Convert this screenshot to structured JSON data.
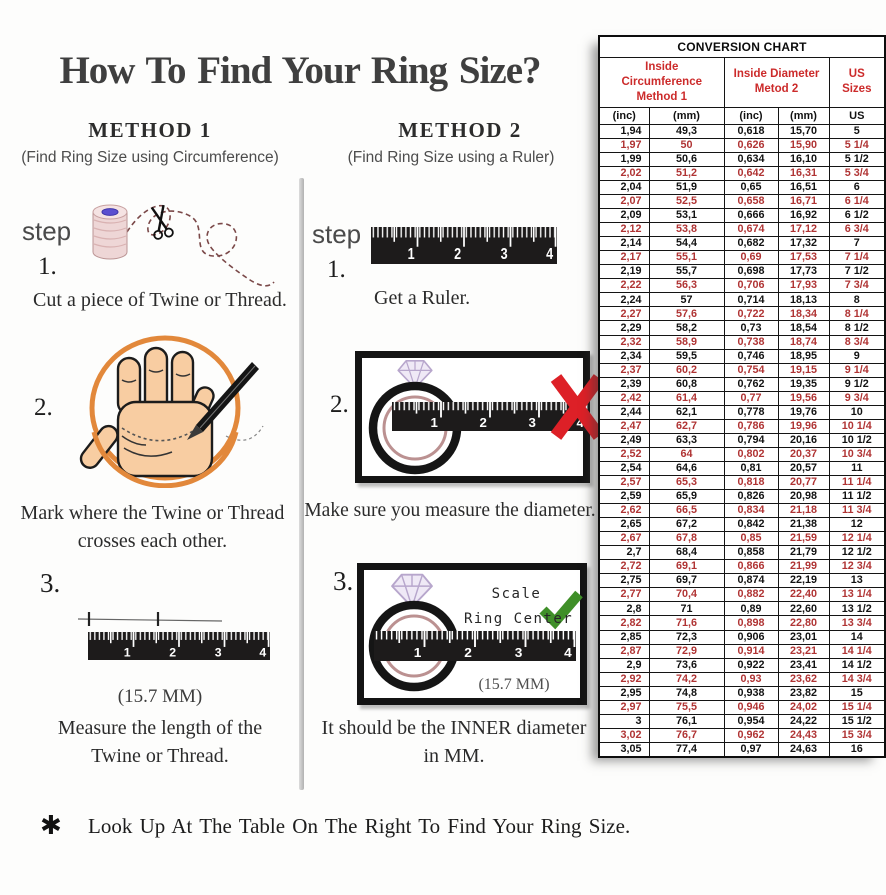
{
  "title": "How To Find Your Ring Size?",
  "footer_marker": "✱",
  "footer": "Look Up At The Table On The Right To Find Your Ring Size.",
  "ruler_numbers": [
    "1",
    "2",
    "3",
    "4"
  ],
  "methods": {
    "method1": {
      "heading": "METHOD 1",
      "subheading": "(Find Ring Size using Circumference)",
      "step_label": "step",
      "step1_num": "1.",
      "step1_caption": "Cut a piece of Twine or Thread.",
      "step2_num": "2.",
      "step2_caption_line1": "Mark where the Twine or Thread",
      "step2_caption_line2": "crosses each other.",
      "step3_num": "3.",
      "step3_measurement": "(15.7 MM)",
      "step3_caption_line1": "Measure the length of the",
      "step3_caption_line2": "Twine or Thread."
    },
    "method2": {
      "heading": "METHOD 2",
      "subheading": "(Find Ring Size using a Ruler)",
      "step_label": "step",
      "step1_num": "1.",
      "step1_caption": "Get a Ruler.",
      "step2_num": "2.",
      "step2_caption": "Make sure you measure the diameter.",
      "step3_num": "3.",
      "step3_annotation_line1": "Scale",
      "step3_annotation_line2": "Ring Center",
      "step3_measurement": "(15.7 MM)",
      "step3_caption_line1": "It should be the INNER diameter",
      "step3_caption_line2": "in MM."
    }
  },
  "conversion_chart": {
    "title": "CONVERSION CHART",
    "group_headers": [
      "Inside Circumference Method 1",
      "Inside Diameter Metod 2",
      "US Sizes"
    ],
    "unit_headers": [
      "(inc)",
      "(mm)",
      "(inc)",
      "(mm)",
      "US"
    ],
    "rows": [
      [
        "1,94",
        "49,3",
        "0,618",
        "15,70",
        "5"
      ],
      [
        "1,97",
        "50",
        "0,626",
        "15,90",
        "5 1/4"
      ],
      [
        "1,99",
        "50,6",
        "0,634",
        "16,10",
        "5 1/2"
      ],
      [
        "2,02",
        "51,2",
        "0,642",
        "16,31",
        "5 3/4"
      ],
      [
        "2,04",
        "51,9",
        "0,65",
        "16,51",
        "6"
      ],
      [
        "2,07",
        "52,5",
        "0,658",
        "16,71",
        "6 1/4"
      ],
      [
        "2,09",
        "53,1",
        "0,666",
        "16,92",
        "6 1/2"
      ],
      [
        "2,12",
        "53,8",
        "0,674",
        "17,12",
        "6 3/4"
      ],
      [
        "2,14",
        "54,4",
        "0,682",
        "17,32",
        "7"
      ],
      [
        "2,17",
        "55,1",
        "0,69",
        "17,53",
        "7 1/4"
      ],
      [
        "2,19",
        "55,7",
        "0,698",
        "17,73",
        "7 1/2"
      ],
      [
        "2,22",
        "56,3",
        "0,706",
        "17,93",
        "7 3/4"
      ],
      [
        "2,24",
        "57",
        "0,714",
        "18,13",
        "8"
      ],
      [
        "2,27",
        "57,6",
        "0,722",
        "18,34",
        "8 1/4"
      ],
      [
        "2,29",
        "58,2",
        "0,73",
        "18,54",
        "8 1/2"
      ],
      [
        "2,32",
        "58,9",
        "0,738",
        "18,74",
        "8 3/4"
      ],
      [
        "2,34",
        "59,5",
        "0,746",
        "18,95",
        "9"
      ],
      [
        "2,37",
        "60,2",
        "0,754",
        "19,15",
        "9 1/4"
      ],
      [
        "2,39",
        "60,8",
        "0,762",
        "19,35",
        "9 1/2"
      ],
      [
        "2,42",
        "61,4",
        "0,77",
        "19,56",
        "9 3/4"
      ],
      [
        "2,44",
        "62,1",
        "0,778",
        "19,76",
        "10"
      ],
      [
        "2,47",
        "62,7",
        "0,786",
        "19,96",
        "10 1/4"
      ],
      [
        "2,49",
        "63,3",
        "0,794",
        "20,16",
        "10 1/2"
      ],
      [
        "2,52",
        "64",
        "0,802",
        "20,37",
        "10 3/4"
      ],
      [
        "2,54",
        "64,6",
        "0,81",
        "20,57",
        "11"
      ],
      [
        "2,57",
        "65,3",
        "0,818",
        "20,77",
        "11 1/4"
      ],
      [
        "2,59",
        "65,9",
        "0,826",
        "20,98",
        "11 1/2"
      ],
      [
        "2,62",
        "66,5",
        "0,834",
        "21,18",
        "11 3/4"
      ],
      [
        "2,65",
        "67,2",
        "0,842",
        "21,38",
        "12"
      ],
      [
        "2,67",
        "67,8",
        "0,85",
        "21,59",
        "12 1/4"
      ],
      [
        "2,7",
        "68,4",
        "0,858",
        "21,79",
        "12 1/2"
      ],
      [
        "2,72",
        "69,1",
        "0,866",
        "21,99",
        "12 3/4"
      ],
      [
        "2,75",
        "69,7",
        "0,874",
        "22,19",
        "13"
      ],
      [
        "2,77",
        "70,4",
        "0,882",
        "22,40",
        "13 1/4"
      ],
      [
        "2,8",
        "71",
        "0,89",
        "22,60",
        "13 1/2"
      ],
      [
        "2,82",
        "71,6",
        "0,898",
        "22,80",
        "13 3/4"
      ],
      [
        "2,85",
        "72,3",
        "0,906",
        "23,01",
        "14"
      ],
      [
        "2,87",
        "72,9",
        "0,914",
        "23,21",
        "14 1/4"
      ],
      [
        "2,9",
        "73,6",
        "0,922",
        "23,41",
        "14 1/2"
      ],
      [
        "2,92",
        "74,2",
        "0,93",
        "23,62",
        "14 3/4"
      ],
      [
        "2,95",
        "74,8",
        "0,938",
        "23,82",
        "15"
      ],
      [
        "2,97",
        "75,5",
        "0,946",
        "24,02",
        "15 1/4"
      ],
      [
        "3",
        "76,1",
        "0,954",
        "24,22",
        "15 1/2"
      ],
      [
        "3,02",
        "76,7",
        "0,962",
        "24,43",
        "15 3/4"
      ],
      [
        "3,05",
        "77,4",
        "0,97",
        "24,63",
        "16"
      ]
    ]
  },
  "colors": {
    "table_red": "#b03434",
    "header_red": "#cc2b2b",
    "x_mark_red": "#dd2027",
    "check_green": "#3f8f28",
    "twine_orange": "#e2883b",
    "hand_skin": "#f8cda2",
    "ring_inner": "#bb9191",
    "diamond_fill": "#efe9f6"
  }
}
